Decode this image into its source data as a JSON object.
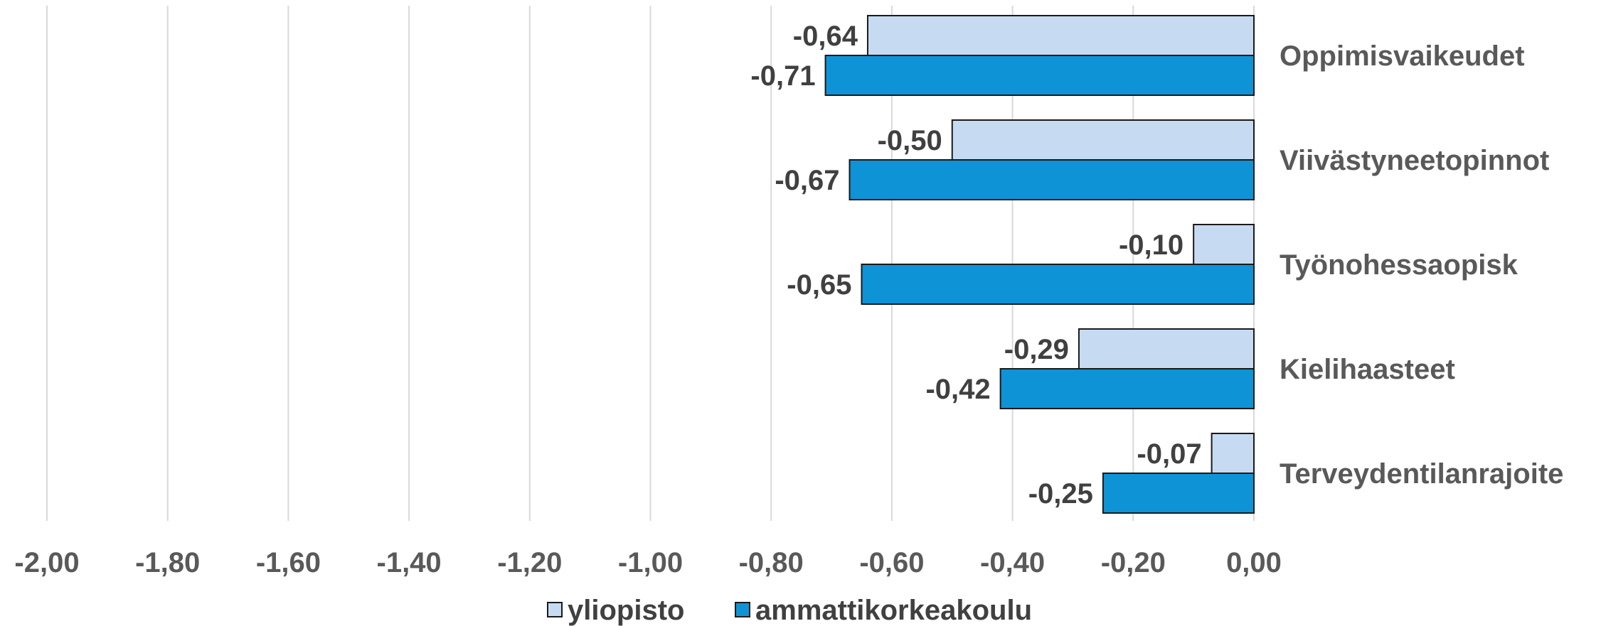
{
  "chart_data": {
    "type": "bar",
    "orientation": "horizontal",
    "categories": [
      "Oppimisvaikeudet",
      "Viivästyneetopinnot",
      "Työnohessaopisk",
      "Kielihaasteet",
      "Terveydentilanrajoite"
    ],
    "series": [
      {
        "name": "yliopisto",
        "values": [
          -0.64,
          -0.5,
          -0.1,
          -0.29,
          -0.07
        ],
        "labels": [
          "-0,64",
          "-0,50",
          "-0,10",
          "-0,29",
          "-0,07"
        ],
        "color": "#c6dbf2"
      },
      {
        "name": "ammattikorkeakoulu",
        "values": [
          -0.71,
          -0.67,
          -0.65,
          -0.42,
          -0.25
        ],
        "labels": [
          "-0,71",
          "-0,67",
          "-0,65",
          "-0,42",
          "-0,25"
        ],
        "color": "#0e93d6"
      }
    ],
    "xlim": [
      -2.0,
      0.0
    ],
    "xticks": [
      -2.0,
      -1.8,
      -1.6,
      -1.4,
      -1.2,
      -1.0,
      -0.8,
      -0.6,
      -0.4,
      -0.2,
      0.0
    ],
    "xtick_labels": [
      "-2,00",
      "-1,80",
      "-1,60",
      "-1,40",
      "-1,20",
      "-1,00",
      "-0,80",
      "-0,60",
      "-0,40",
      "-0,20",
      "0,00"
    ],
    "grid": true,
    "legend_position": "bottom",
    "title": "",
    "xlabel": "",
    "ylabel": ""
  },
  "colors": {
    "gridline": "#d9d9d9",
    "bar_border": "#1a1a1a",
    "axis_text": "#595959",
    "label_text": "#404040"
  }
}
